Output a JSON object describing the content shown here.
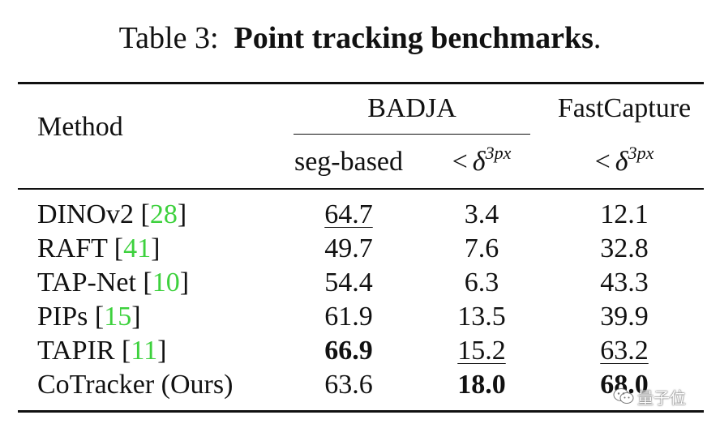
{
  "caption": {
    "label": "Table 3:",
    "title": "Point tracking benchmarks",
    "period": "."
  },
  "header": {
    "method": "Method",
    "group_badja": "BADJA",
    "group_fastcapture": "FastCapture",
    "sub_seg": "seg-based",
    "sub_delta_lt": "<",
    "sub_delta_sym": "δ",
    "sub_delta_sup": "3px"
  },
  "rows": [
    {
      "method": "DINOv2",
      "ref": "28",
      "seg": "64.7",
      "d1": "3.4",
      "d2": "12.1"
    },
    {
      "method": "RAFT",
      "ref": "41",
      "seg": "49.7",
      "d1": "7.6",
      "d2": "32.8"
    },
    {
      "method": "TAP-Net",
      "ref": "10",
      "seg": "54.4",
      "d1": "6.3",
      "d2": "43.3"
    },
    {
      "method": "PIPs",
      "ref": "15",
      "seg": "61.9",
      "d1": "13.5",
      "d2": "39.9"
    },
    {
      "method": "TAPIR",
      "ref": "11",
      "seg": "66.9",
      "d1": "15.2",
      "d2": "63.2"
    },
    {
      "method": "CoTracker (Ours)",
      "ref": "",
      "seg": "63.6",
      "d1": "18.0",
      "d2": "68.0"
    }
  ],
  "watermark": {
    "text": "量子位",
    "icon": "wechat-icon"
  },
  "colors": {
    "citation": "#3dd13d",
    "text": "#111111"
  }
}
